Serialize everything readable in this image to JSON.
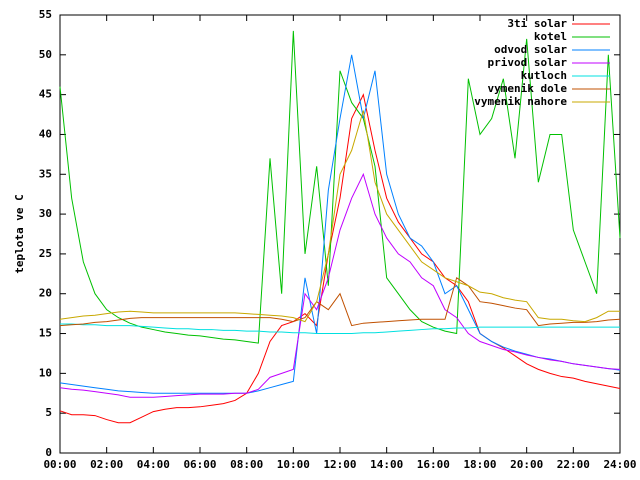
{
  "chart_data": {
    "type": "line",
    "y_label": "teplota ve C",
    "x": [
      0,
      0.5,
      1,
      1.5,
      2,
      2.5,
      3,
      3.5,
      4,
      4.5,
      5,
      5.5,
      6,
      6.5,
      7,
      7.5,
      8,
      8.5,
      9,
      9.5,
      10,
      10.5,
      11,
      11.5,
      12,
      12.5,
      13,
      13.5,
      14,
      14.5,
      15,
      15.5,
      16,
      16.5,
      17,
      17.5,
      18,
      18.5,
      19,
      19.5,
      20,
      20.5,
      21,
      21.5,
      22,
      22.5,
      23,
      23.5,
      24
    ],
    "series": [
      {
        "name": "3ti solar",
        "color": "#ff0000",
        "values": [
          5.3,
          4.8,
          4.8,
          4.7,
          4.2,
          3.8,
          3.8,
          4.5,
          5.2,
          5.5,
          5.7,
          5.7,
          5.8,
          6,
          6.2,
          6.6,
          7.5,
          10,
          14,
          16,
          16.5,
          17.5,
          16,
          25,
          32,
          42,
          45,
          38,
          32,
          29,
          27,
          25,
          24,
          22,
          21,
          19,
          15,
          14,
          13.2,
          12.2,
          11.2,
          10.5,
          10,
          9.6,
          9.4,
          9,
          8.7,
          8.4,
          8.1
        ]
      },
      {
        "name": "kotel",
        "color": "#00c000",
        "values": [
          46,
          32,
          24,
          20,
          18,
          17,
          16.3,
          15.8,
          15.5,
          15.2,
          15,
          14.8,
          14.7,
          14.5,
          14.3,
          14.2,
          14,
          13.8,
          37,
          20,
          53,
          25,
          36,
          21,
          48,
          44,
          42,
          36,
          22,
          20,
          18,
          16.5,
          15.8,
          15.3,
          15,
          47,
          40,
          42,
          47,
          37,
          52,
          34,
          40,
          40,
          28,
          24,
          20,
          50,
          27
        ]
      },
      {
        "name": "odvod solar",
        "color": "#0080ff",
        "values": [
          8.8,
          8.6,
          8.4,
          8.2,
          8,
          7.8,
          7.7,
          7.6,
          7.5,
          7.5,
          7.5,
          7.5,
          7.5,
          7.5,
          7.5,
          7.5,
          7.5,
          7.8,
          8.2,
          8.6,
          9,
          22,
          15,
          33,
          42,
          50,
          42,
          48,
          35,
          30,
          27,
          26,
          24,
          20,
          21,
          18,
          15,
          14,
          13.3,
          12.8,
          12.4,
          12,
          11.8,
          11.5,
          11.2,
          11,
          10.8,
          10.6,
          10.4
        ]
      },
      {
        "name": "privod solar",
        "color": "#c000ff",
        "values": [
          8.2,
          8,
          7.9,
          7.7,
          7.5,
          7.3,
          7,
          7,
          7,
          7.1,
          7.2,
          7.3,
          7.4,
          7.4,
          7.4,
          7.5,
          7.5,
          8,
          9.5,
          10,
          10.5,
          20,
          18,
          22,
          28,
          32,
          35,
          30,
          27,
          25,
          24,
          22,
          21,
          18,
          17,
          15,
          14,
          13.5,
          13,
          12.7,
          12.3,
          12,
          11.7,
          11.5,
          11.2,
          11,
          10.8,
          10.6,
          10.5
        ]
      },
      {
        "name": "kutloch",
        "color": "#00e0e0",
        "values": [
          16.2,
          16.2,
          16.1,
          16.1,
          16,
          16,
          16,
          15.9,
          15.8,
          15.7,
          15.6,
          15.6,
          15.5,
          15.5,
          15.4,
          15.4,
          15.3,
          15.3,
          15.2,
          15.2,
          15.1,
          15.1,
          15,
          15,
          15,
          15,
          15.1,
          15.1,
          15.2,
          15.3,
          15.4,
          15.5,
          15.6,
          15.6,
          15.7,
          15.7,
          15.8,
          15.8,
          15.8,
          15.8,
          15.8,
          15.8,
          15.8,
          15.8,
          15.8,
          15.8,
          15.8,
          15.8,
          15.8
        ]
      },
      {
        "name": "vymenik dole",
        "color": "#c05000",
        "values": [
          16,
          16.1,
          16.2,
          16.4,
          16.5,
          16.7,
          16.9,
          17,
          17,
          17,
          17,
          17,
          17,
          17,
          17,
          17,
          17,
          17,
          17,
          16.8,
          16.5,
          17,
          19,
          18,
          20,
          16,
          16.3,
          16.4,
          16.5,
          16.6,
          16.7,
          16.8,
          16.8,
          16.8,
          22,
          21,
          19,
          18.8,
          18.5,
          18.2,
          18,
          16,
          16.2,
          16.3,
          16.4,
          16.4,
          16.5,
          16.7,
          16.8
        ]
      },
      {
        "name": "vymenik nahore",
        "color": "#c8a800",
        "values": [
          16.8,
          17,
          17.2,
          17.3,
          17.5,
          17.7,
          17.8,
          17.7,
          17.6,
          17.6,
          17.6,
          17.6,
          17.6,
          17.6,
          17.6,
          17.6,
          17.5,
          17.4,
          17.3,
          17.2,
          17,
          16.5,
          19,
          25,
          35,
          38,
          43,
          34,
          30,
          28,
          26,
          24,
          23,
          22,
          21.5,
          21,
          20.2,
          20,
          19.5,
          19.2,
          19,
          17,
          16.8,
          16.8,
          16.6,
          16.5,
          17,
          17.8,
          17.8
        ]
      }
    ],
    "xlim": [
      0,
      24
    ],
    "xticks": [
      {
        "value": 0,
        "label": "00:00"
      },
      {
        "value": 2,
        "label": "02:00"
      },
      {
        "value": 4,
        "label": "04:00"
      },
      {
        "value": 6,
        "label": "06:00"
      },
      {
        "value": 8,
        "label": "08:00"
      },
      {
        "value": 10,
        "label": "10:00"
      },
      {
        "value": 12,
        "label": "12:00"
      },
      {
        "value": 14,
        "label": "14:00"
      },
      {
        "value": 16,
        "label": "16:00"
      },
      {
        "value": 18,
        "label": "18:00"
      },
      {
        "value": 20,
        "label": "20:00"
      },
      {
        "value": 22,
        "label": "22:00"
      },
      {
        "value": 24,
        "label": "24:00"
      }
    ],
    "ylim": [
      0,
      55
    ],
    "yticks": [
      0,
      5,
      10,
      15,
      20,
      25,
      30,
      35,
      40,
      45,
      50,
      55
    ],
    "legend": "top-right"
  }
}
